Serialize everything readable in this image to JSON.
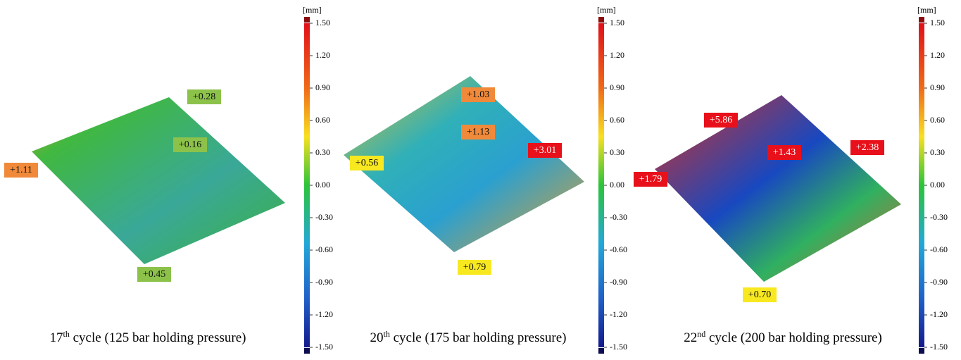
{
  "colorbar": {
    "unit": "[mm]",
    "ticks": [
      "1.50",
      "1.20",
      "0.90",
      "0.60",
      "0.30",
      "0.00",
      "-0.30",
      "-0.60",
      "-0.90",
      "-1.20",
      "-1.50"
    ]
  },
  "panels": [
    {
      "caption": {
        "number": "17",
        "suffix": "th",
        "text": " cycle (125 bar holding pressure)"
      },
      "annotations": [
        "+0.28",
        "+0.16",
        "+1.11",
        "+0.45"
      ]
    },
    {
      "caption": {
        "number": "20",
        "suffix": "th",
        "text": " cycle (175 bar holding pressure)"
      },
      "annotations": [
        "+1.03",
        "+1.13",
        "+3.01",
        "+0.56",
        "+0.79"
      ]
    },
    {
      "caption": {
        "number": "22",
        "suffix": "nd",
        "text": " cycle (200 bar holding pressure)"
      },
      "annotations": [
        "+5.86",
        "+1.43",
        "+2.38",
        "+1.79",
        "+0.70"
      ]
    }
  ]
}
